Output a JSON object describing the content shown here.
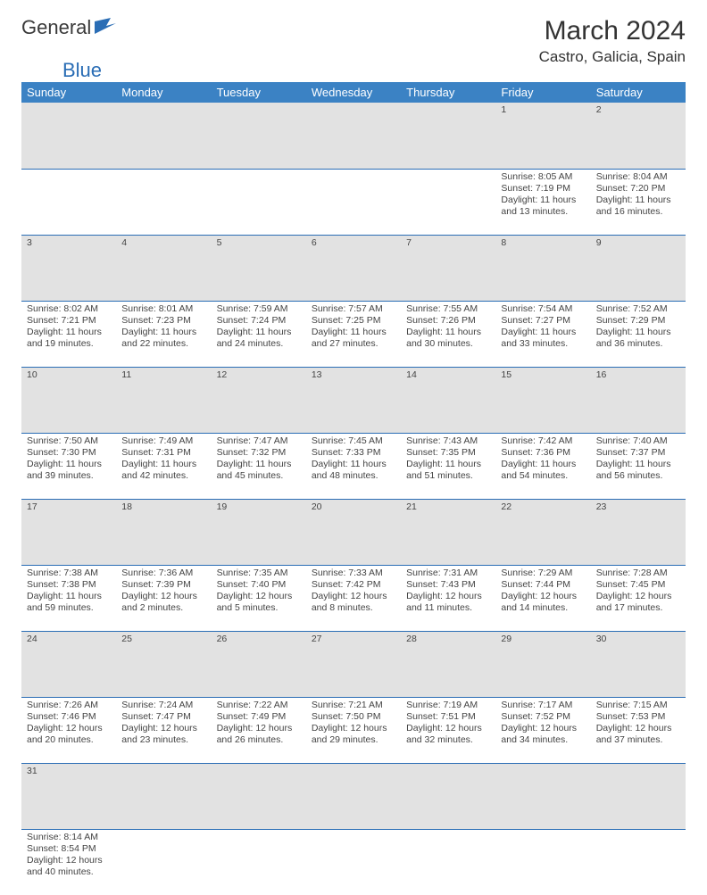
{
  "logo": {
    "text1": "General",
    "text2": "Blue"
  },
  "title": "March 2024",
  "location": "Castro, Galicia, Spain",
  "colors": {
    "header_bg": "#3b82c4",
    "header_text": "#ffffff",
    "daynum_bg": "#e2e2e2",
    "row_border": "#2a6db5",
    "logo_blue": "#2a6db5"
  },
  "day_headers": [
    "Sunday",
    "Monday",
    "Tuesday",
    "Wednesday",
    "Thursday",
    "Friday",
    "Saturday"
  ],
  "weeks": [
    {
      "nums": [
        "",
        "",
        "",
        "",
        "",
        "1",
        "2"
      ],
      "cells": [
        null,
        null,
        null,
        null,
        null,
        {
          "sunrise": "Sunrise: 8:05 AM",
          "sunset": "Sunset: 7:19 PM",
          "day1": "Daylight: 11 hours",
          "day2": "and 13 minutes."
        },
        {
          "sunrise": "Sunrise: 8:04 AM",
          "sunset": "Sunset: 7:20 PM",
          "day1": "Daylight: 11 hours",
          "day2": "and 16 minutes."
        }
      ]
    },
    {
      "nums": [
        "3",
        "4",
        "5",
        "6",
        "7",
        "8",
        "9"
      ],
      "cells": [
        {
          "sunrise": "Sunrise: 8:02 AM",
          "sunset": "Sunset: 7:21 PM",
          "day1": "Daylight: 11 hours",
          "day2": "and 19 minutes."
        },
        {
          "sunrise": "Sunrise: 8:01 AM",
          "sunset": "Sunset: 7:23 PM",
          "day1": "Daylight: 11 hours",
          "day2": "and 22 minutes."
        },
        {
          "sunrise": "Sunrise: 7:59 AM",
          "sunset": "Sunset: 7:24 PM",
          "day1": "Daylight: 11 hours",
          "day2": "and 24 minutes."
        },
        {
          "sunrise": "Sunrise: 7:57 AM",
          "sunset": "Sunset: 7:25 PM",
          "day1": "Daylight: 11 hours",
          "day2": "and 27 minutes."
        },
        {
          "sunrise": "Sunrise: 7:55 AM",
          "sunset": "Sunset: 7:26 PM",
          "day1": "Daylight: 11 hours",
          "day2": "and 30 minutes."
        },
        {
          "sunrise": "Sunrise: 7:54 AM",
          "sunset": "Sunset: 7:27 PM",
          "day1": "Daylight: 11 hours",
          "day2": "and 33 minutes."
        },
        {
          "sunrise": "Sunrise: 7:52 AM",
          "sunset": "Sunset: 7:29 PM",
          "day1": "Daylight: 11 hours",
          "day2": "and 36 minutes."
        }
      ]
    },
    {
      "nums": [
        "10",
        "11",
        "12",
        "13",
        "14",
        "15",
        "16"
      ],
      "cells": [
        {
          "sunrise": "Sunrise: 7:50 AM",
          "sunset": "Sunset: 7:30 PM",
          "day1": "Daylight: 11 hours",
          "day2": "and 39 minutes."
        },
        {
          "sunrise": "Sunrise: 7:49 AM",
          "sunset": "Sunset: 7:31 PM",
          "day1": "Daylight: 11 hours",
          "day2": "and 42 minutes."
        },
        {
          "sunrise": "Sunrise: 7:47 AM",
          "sunset": "Sunset: 7:32 PM",
          "day1": "Daylight: 11 hours",
          "day2": "and 45 minutes."
        },
        {
          "sunrise": "Sunrise: 7:45 AM",
          "sunset": "Sunset: 7:33 PM",
          "day1": "Daylight: 11 hours",
          "day2": "and 48 minutes."
        },
        {
          "sunrise": "Sunrise: 7:43 AM",
          "sunset": "Sunset: 7:35 PM",
          "day1": "Daylight: 11 hours",
          "day2": "and 51 minutes."
        },
        {
          "sunrise": "Sunrise: 7:42 AM",
          "sunset": "Sunset: 7:36 PM",
          "day1": "Daylight: 11 hours",
          "day2": "and 54 minutes."
        },
        {
          "sunrise": "Sunrise: 7:40 AM",
          "sunset": "Sunset: 7:37 PM",
          "day1": "Daylight: 11 hours",
          "day2": "and 56 minutes."
        }
      ]
    },
    {
      "nums": [
        "17",
        "18",
        "19",
        "20",
        "21",
        "22",
        "23"
      ],
      "cells": [
        {
          "sunrise": "Sunrise: 7:38 AM",
          "sunset": "Sunset: 7:38 PM",
          "day1": "Daylight: 11 hours",
          "day2": "and 59 minutes."
        },
        {
          "sunrise": "Sunrise: 7:36 AM",
          "sunset": "Sunset: 7:39 PM",
          "day1": "Daylight: 12 hours",
          "day2": "and 2 minutes."
        },
        {
          "sunrise": "Sunrise: 7:35 AM",
          "sunset": "Sunset: 7:40 PM",
          "day1": "Daylight: 12 hours",
          "day2": "and 5 minutes."
        },
        {
          "sunrise": "Sunrise: 7:33 AM",
          "sunset": "Sunset: 7:42 PM",
          "day1": "Daylight: 12 hours",
          "day2": "and 8 minutes."
        },
        {
          "sunrise": "Sunrise: 7:31 AM",
          "sunset": "Sunset: 7:43 PM",
          "day1": "Daylight: 12 hours",
          "day2": "and 11 minutes."
        },
        {
          "sunrise": "Sunrise: 7:29 AM",
          "sunset": "Sunset: 7:44 PM",
          "day1": "Daylight: 12 hours",
          "day2": "and 14 minutes."
        },
        {
          "sunrise": "Sunrise: 7:28 AM",
          "sunset": "Sunset: 7:45 PM",
          "day1": "Daylight: 12 hours",
          "day2": "and 17 minutes."
        }
      ]
    },
    {
      "nums": [
        "24",
        "25",
        "26",
        "27",
        "28",
        "29",
        "30"
      ],
      "cells": [
        {
          "sunrise": "Sunrise: 7:26 AM",
          "sunset": "Sunset: 7:46 PM",
          "day1": "Daylight: 12 hours",
          "day2": "and 20 minutes."
        },
        {
          "sunrise": "Sunrise: 7:24 AM",
          "sunset": "Sunset: 7:47 PM",
          "day1": "Daylight: 12 hours",
          "day2": "and 23 minutes."
        },
        {
          "sunrise": "Sunrise: 7:22 AM",
          "sunset": "Sunset: 7:49 PM",
          "day1": "Daylight: 12 hours",
          "day2": "and 26 minutes."
        },
        {
          "sunrise": "Sunrise: 7:21 AM",
          "sunset": "Sunset: 7:50 PM",
          "day1": "Daylight: 12 hours",
          "day2": "and 29 minutes."
        },
        {
          "sunrise": "Sunrise: 7:19 AM",
          "sunset": "Sunset: 7:51 PM",
          "day1": "Daylight: 12 hours",
          "day2": "and 32 minutes."
        },
        {
          "sunrise": "Sunrise: 7:17 AM",
          "sunset": "Sunset: 7:52 PM",
          "day1": "Daylight: 12 hours",
          "day2": "and 34 minutes."
        },
        {
          "sunrise": "Sunrise: 7:15 AM",
          "sunset": "Sunset: 7:53 PM",
          "day1": "Daylight: 12 hours",
          "day2": "and 37 minutes."
        }
      ]
    },
    {
      "nums": [
        "31",
        "",
        "",
        "",
        "",
        "",
        ""
      ],
      "cells": [
        {
          "sunrise": "Sunrise: 8:14 AM",
          "sunset": "Sunset: 8:54 PM",
          "day1": "Daylight: 12 hours",
          "day2": "and 40 minutes."
        },
        null,
        null,
        null,
        null,
        null,
        null
      ]
    }
  ]
}
